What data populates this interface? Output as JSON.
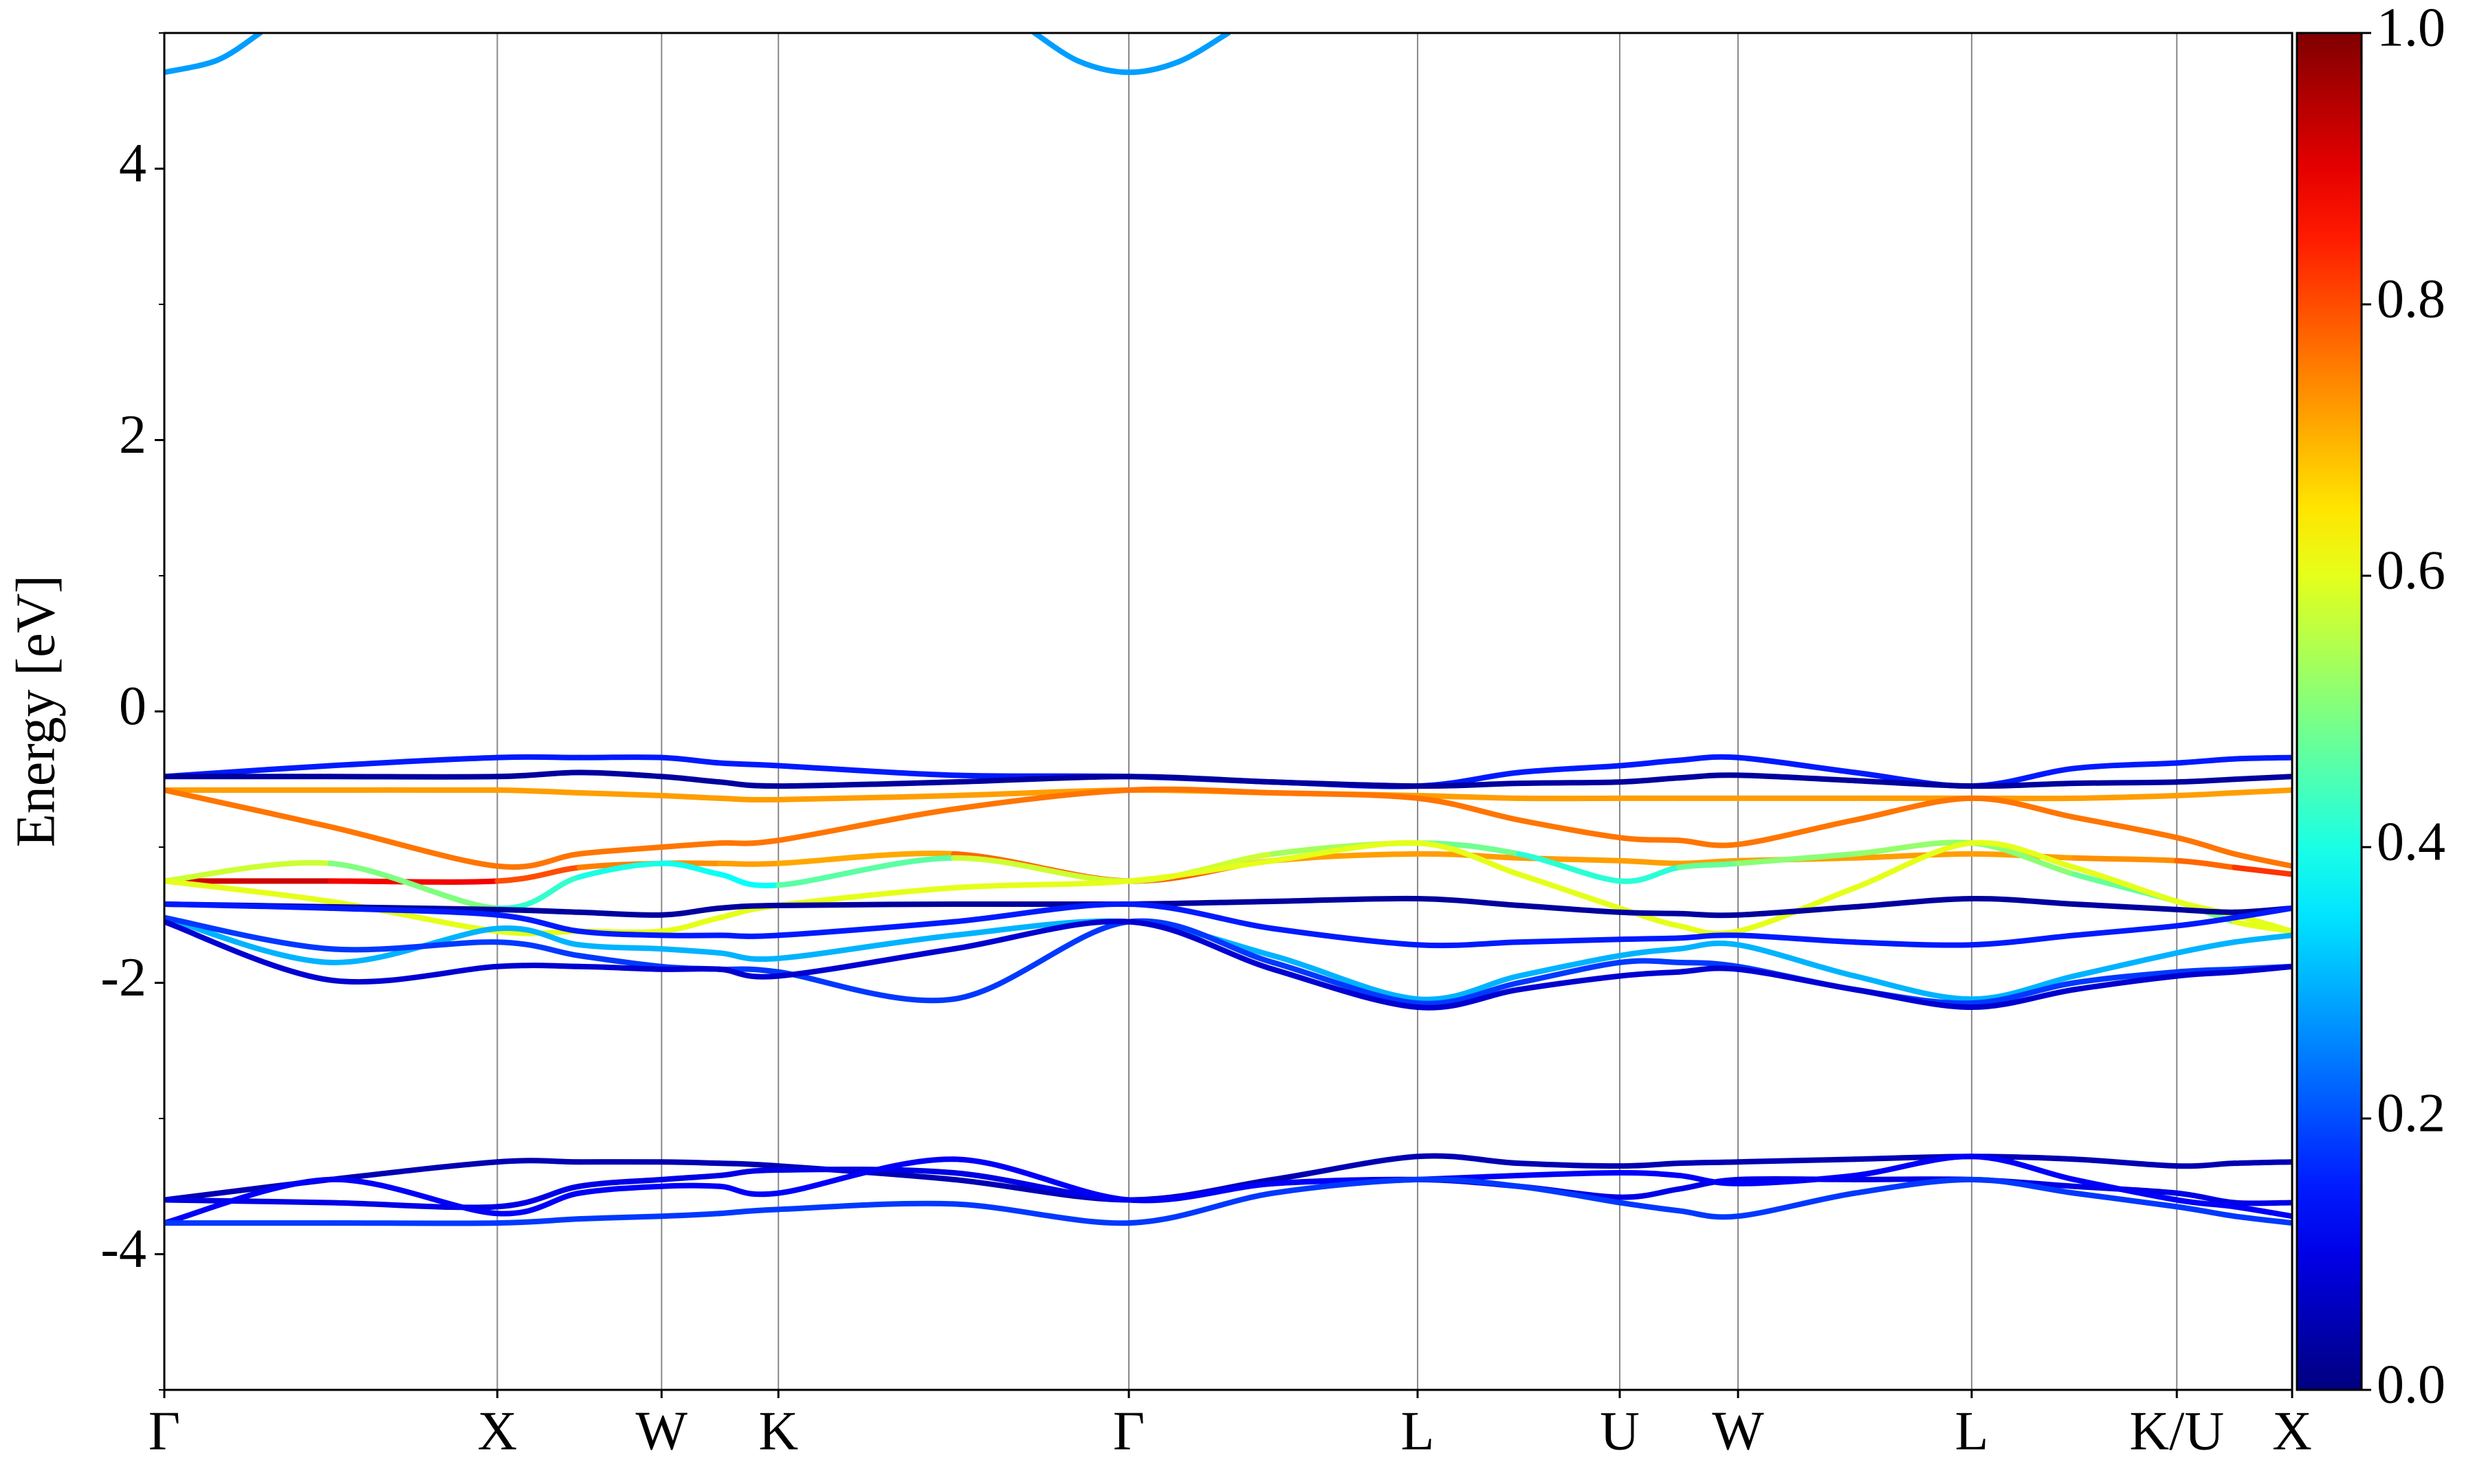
{
  "chart_data": {
    "type": "band-structure",
    "ylabel": "Energy [eV]",
    "xlim": [
      0,
      10
    ],
    "ylim": [
      -5,
      5
    ],
    "xticks": [
      {
        "value": 0,
        "label": "Γ"
      },
      {
        "value": 1.565,
        "label": "X"
      },
      {
        "value": 2.337,
        "label": "W"
      },
      {
        "value": 2.886,
        "label": "K"
      },
      {
        "value": 4.533,
        "label": "Γ"
      },
      {
        "value": 5.89,
        "label": "L"
      },
      {
        "value": 6.84,
        "label": "U"
      },
      {
        "value": 7.396,
        "label": "W"
      },
      {
        "value": 8.494,
        "label": "L"
      },
      {
        "value": 9.458,
        "label": "K/U"
      },
      {
        "value": 10,
        "label": "X"
      }
    ],
    "yticks": [
      -4,
      -2,
      0,
      2,
      4
    ],
    "yminorticks": [
      -5,
      -3,
      -1,
      1,
      3,
      5
    ],
    "vertical_lines": true,
    "colormap": "jet",
    "clim": [
      0,
      1
    ],
    "cticks": [
      {
        "value": 0,
        "label": "0.0"
      },
      {
        "value": 0.2,
        "label": "0.2"
      },
      {
        "value": 0.4,
        "label": "0.4"
      },
      {
        "value": 0.6,
        "label": "0.6"
      },
      {
        "value": 0.8,
        "label": "0.8"
      },
      {
        "value": 1,
        "label": "1.0"
      }
    ],
    "x": [
      0,
      0.78,
      1.565,
      1.95,
      2.337,
      2.61,
      2.886,
      3.71,
      4.533,
      5.21,
      5.89,
      6.365,
      6.84,
      7.118,
      7.396,
      7.945,
      8.494,
      8.976,
      9.458,
      9.729,
      10
    ],
    "bands": [
      {
        "x": [
          0,
          0.25,
          0.45
        ],
        "y": [
          4.71,
          4.8,
          5.0
        ],
        "weight": 0.28
      },
      {
        "x": [
          4.09,
          4.3,
          4.533,
          4.77,
          5.0
        ],
        "y": [
          5.0,
          4.79,
          4.71,
          4.79,
          5.0
        ],
        "weight": 0.28
      },
      {
        "y": [
          -0.48,
          -0.4,
          -0.34,
          -0.34,
          -0.34,
          -0.38,
          -0.4,
          -0.47,
          -0.48,
          -0.52,
          -0.55,
          -0.45,
          -0.4,
          -0.36,
          -0.34,
          -0.45,
          -0.55,
          -0.42,
          -0.38,
          -0.35,
          -0.34
        ],
        "weight": 0.15
      },
      {
        "y": [
          -0.48,
          -0.48,
          -0.48,
          -0.45,
          -0.48,
          -0.52,
          -0.55,
          -0.52,
          -0.48,
          -0.52,
          -0.55,
          -0.53,
          -0.52,
          -0.49,
          -0.47,
          -0.51,
          -0.55,
          -0.53,
          -0.52,
          -0.5,
          -0.48
        ],
        "weight": 0.03
      },
      {
        "y": [
          -0.58,
          -0.58,
          -0.58,
          -0.6,
          -0.62,
          -0.64,
          -0.65,
          -0.62,
          -0.58,
          -0.6,
          -0.62,
          -0.64,
          -0.64,
          -0.64,
          -0.64,
          -0.64,
          -0.64,
          -0.64,
          -0.62,
          -0.6,
          -0.58
        ],
        "weight": 0.72
      },
      {
        "y": [
          -0.58,
          -0.85,
          -1.14,
          -1.05,
          -1.0,
          -0.97,
          -0.95,
          -0.72,
          -0.58,
          -0.6,
          -0.64,
          -0.8,
          -0.93,
          -0.95,
          -0.98,
          -0.8,
          -0.64,
          -0.78,
          -0.93,
          -1.05,
          -1.14
        ],
        "weight": 0.76
      },
      {
        "y": [
          -1.25,
          -1.25,
          -1.25,
          -1.15,
          -1.12,
          -1.12,
          -1.12,
          -1.05,
          -1.25,
          -1.1,
          -1.05,
          -1.08,
          -1.1,
          -1.12,
          -1.1,
          -1.08,
          -1.05,
          -1.08,
          -1.1,
          -1.15,
          -1.2
        ],
        "weights": [
          0.92,
          0.92,
          0.85,
          0.75,
          0.75,
          0.72,
          0.72,
          0.7,
          0.85,
          0.72,
          0.72,
          0.72,
          0.72,
          0.72,
          0.72,
          0.72,
          0.72,
          0.72,
          0.75,
          0.8,
          0.85
        ]
      },
      {
        "y": [
          -1.25,
          -1.12,
          -1.45,
          -1.22,
          -1.12,
          -1.2,
          -1.28,
          -1.08,
          -1.25,
          -1.05,
          -0.97,
          -1.05,
          -1.25,
          -1.15,
          -1.12,
          -1.05,
          -0.97,
          -1.2,
          -1.4,
          -1.55,
          -1.62
        ],
        "weights": [
          0.6,
          0.55,
          0.45,
          0.4,
          0.4,
          0.38,
          0.38,
          0.55,
          0.6,
          0.55,
          0.52,
          0.45,
          0.38,
          0.45,
          0.5,
          0.52,
          0.52,
          0.5,
          0.45,
          0.55,
          0.65
        ]
      },
      {
        "y": [
          -1.25,
          -1.4,
          -1.62,
          -1.62,
          -1.62,
          -1.52,
          -1.43,
          -1.3,
          -1.25,
          -1.1,
          -0.97,
          -1.2,
          -1.45,
          -1.58,
          -1.62,
          -1.3,
          -0.97,
          -1.15,
          -1.4,
          -1.5,
          -1.62
        ],
        "weight": 0.6
      },
      {
        "y": [
          -1.42,
          -1.44,
          -1.46,
          -1.48,
          -1.5,
          -1.45,
          -1.43,
          -1.42,
          -1.42,
          -1.4,
          -1.38,
          -1.43,
          -1.48,
          -1.49,
          -1.5,
          -1.44,
          -1.38,
          -1.42,
          -1.46,
          -1.48,
          -1.45
        ],
        "weight": 0.03
      },
      {
        "y": [
          -1.42,
          -1.45,
          -1.5,
          -1.62,
          -1.65,
          -1.65,
          -1.65,
          -1.55,
          -1.42,
          -1.6,
          -1.72,
          -1.7,
          -1.68,
          -1.67,
          -1.65,
          -1.7,
          -1.72,
          -1.65,
          -1.58,
          -1.52,
          -1.45
        ],
        "weight": 0.15
      },
      {
        "y": [
          -1.52,
          -1.85,
          -1.6,
          -1.72,
          -1.75,
          -1.78,
          -1.82,
          -1.65,
          -1.55,
          -1.8,
          -2.12,
          -1.95,
          -1.8,
          -1.75,
          -1.72,
          -1.95,
          -2.12,
          -1.95,
          -1.78,
          -1.7,
          -1.65
        ],
        "weight": 0.3
      },
      {
        "y": [
          -1.52,
          -1.75,
          -1.7,
          -1.8,
          -1.88,
          -1.9,
          -1.92,
          -2.12,
          -1.55,
          -1.85,
          -2.15,
          -2.0,
          -1.85,
          -1.85,
          -1.88,
          -2.05,
          -2.15,
          -2.0,
          -1.92,
          -1.9,
          -1.88
        ],
        "weight": 0.18
      },
      {
        "y": [
          -1.55,
          -1.98,
          -1.88,
          -1.88,
          -1.9,
          -1.9,
          -1.95,
          -1.75,
          -1.55,
          -1.9,
          -2.18,
          -2.05,
          -1.95,
          -1.92,
          -1.9,
          -2.05,
          -2.18,
          -2.05,
          -1.95,
          -1.92,
          -1.88
        ],
        "weight": 0.08
      },
      {
        "y": [
          -3.6,
          -3.45,
          -3.32,
          -3.32,
          -3.32,
          -3.33,
          -3.35,
          -3.45,
          -3.6,
          -3.45,
          -3.28,
          -3.33,
          -3.35,
          -3.33,
          -3.32,
          -3.3,
          -3.28,
          -3.3,
          -3.35,
          -3.33,
          -3.32
        ],
        "weight": 0.05
      },
      {
        "y": [
          -3.6,
          -3.62,
          -3.65,
          -3.5,
          -3.45,
          -3.42,
          -3.38,
          -3.4,
          -3.6,
          -3.48,
          -3.45,
          -3.5,
          -3.58,
          -3.52,
          -3.45,
          -3.45,
          -3.45,
          -3.5,
          -3.55,
          -3.62,
          -3.62
        ],
        "weight": 0.1
      },
      {
        "y": [
          -3.77,
          -3.45,
          -3.7,
          -3.55,
          -3.5,
          -3.5,
          -3.55,
          -3.3,
          -3.6,
          -3.48,
          -3.45,
          -3.42,
          -3.4,
          -3.42,
          -3.48,
          -3.42,
          -3.28,
          -3.45,
          -3.6,
          -3.65,
          -3.72
        ],
        "weight": 0.12
      },
      {
        "y": [
          -3.77,
          -3.77,
          -3.77,
          -3.74,
          -3.72,
          -3.7,
          -3.67,
          -3.63,
          -3.77,
          -3.55,
          -3.45,
          -3.5,
          -3.62,
          -3.68,
          -3.72,
          -3.55,
          -3.45,
          -3.55,
          -3.65,
          -3.72,
          -3.77
        ],
        "weight": 0.18
      }
    ]
  }
}
